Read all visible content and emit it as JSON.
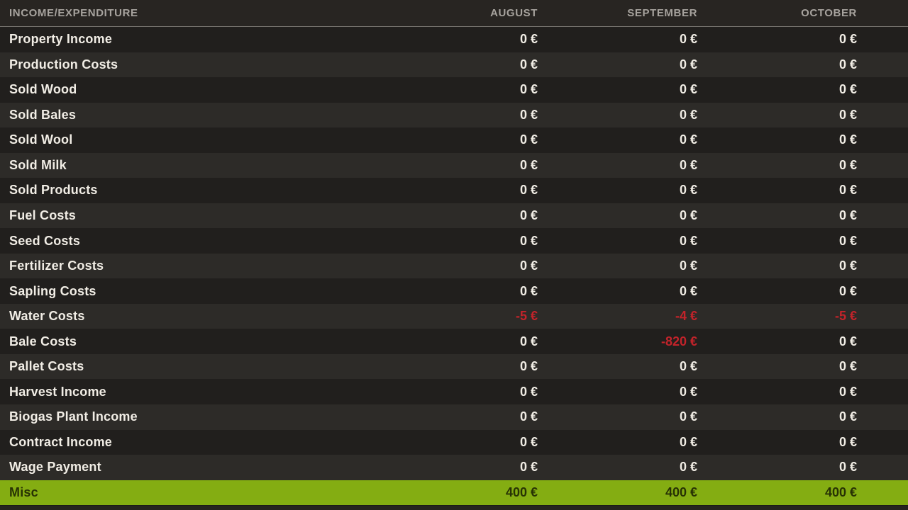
{
  "colors": {
    "highlight_green": "#84ad12",
    "negative_red": "#c2232a",
    "row_dark": "#211f1d",
    "row_light": "#2d2b28",
    "text_cream": "#f1ede5",
    "header_text": "#a7a39e"
  },
  "table": {
    "header": {
      "label": "INCOME/EXPENDITURE",
      "months": [
        "AUGUST",
        "SEPTEMBER",
        "OCTOBER"
      ]
    },
    "rows": [
      {
        "label": "Property Income",
        "values": [
          "0 €",
          "0 €",
          "0 €"
        ],
        "negative": [
          false,
          false,
          false
        ],
        "highlighted": false
      },
      {
        "label": "Production Costs",
        "values": [
          "0 €",
          "0 €",
          "0 €"
        ],
        "negative": [
          false,
          false,
          false
        ],
        "highlighted": false
      },
      {
        "label": "Sold Wood",
        "values": [
          "0 €",
          "0 €",
          "0 €"
        ],
        "negative": [
          false,
          false,
          false
        ],
        "highlighted": false
      },
      {
        "label": "Sold Bales",
        "values": [
          "0 €",
          "0 €",
          "0 €"
        ],
        "negative": [
          false,
          false,
          false
        ],
        "highlighted": false
      },
      {
        "label": "Sold Wool",
        "values": [
          "0 €",
          "0 €",
          "0 €"
        ],
        "negative": [
          false,
          false,
          false
        ],
        "highlighted": false
      },
      {
        "label": "Sold Milk",
        "values": [
          "0 €",
          "0 €",
          "0 €"
        ],
        "negative": [
          false,
          false,
          false
        ],
        "highlighted": false
      },
      {
        "label": "Sold Products",
        "values": [
          "0 €",
          "0 €",
          "0 €"
        ],
        "negative": [
          false,
          false,
          false
        ],
        "highlighted": false
      },
      {
        "label": "Fuel Costs",
        "values": [
          "0 €",
          "0 €",
          "0 €"
        ],
        "negative": [
          false,
          false,
          false
        ],
        "highlighted": false
      },
      {
        "label": "Seed Costs",
        "values": [
          "0 €",
          "0 €",
          "0 €"
        ],
        "negative": [
          false,
          false,
          false
        ],
        "highlighted": false
      },
      {
        "label": "Fertilizer Costs",
        "values": [
          "0 €",
          "0 €",
          "0 €"
        ],
        "negative": [
          false,
          false,
          false
        ],
        "highlighted": false
      },
      {
        "label": "Sapling Costs",
        "values": [
          "0 €",
          "0 €",
          "0 €"
        ],
        "negative": [
          false,
          false,
          false
        ],
        "highlighted": false
      },
      {
        "label": "Water Costs",
        "values": [
          "-5 €",
          "-4 €",
          "-5 €"
        ],
        "negative": [
          true,
          true,
          true
        ],
        "highlighted": false
      },
      {
        "label": "Bale Costs",
        "values": [
          "0 €",
          "-820 €",
          "0 €"
        ],
        "negative": [
          false,
          true,
          false
        ],
        "highlighted": false
      },
      {
        "label": "Pallet Costs",
        "values": [
          "0 €",
          "0 €",
          "0 €"
        ],
        "negative": [
          false,
          false,
          false
        ],
        "highlighted": false
      },
      {
        "label": "Harvest Income",
        "values": [
          "0 €",
          "0 €",
          "0 €"
        ],
        "negative": [
          false,
          false,
          false
        ],
        "highlighted": false
      },
      {
        "label": "Biogas Plant Income",
        "values": [
          "0 €",
          "0 €",
          "0 €"
        ],
        "negative": [
          false,
          false,
          false
        ],
        "highlighted": false
      },
      {
        "label": "Contract Income",
        "values": [
          "0 €",
          "0 €",
          "0 €"
        ],
        "negative": [
          false,
          false,
          false
        ],
        "highlighted": false
      },
      {
        "label": "Wage Payment",
        "values": [
          "0 €",
          "0 €",
          "0 €"
        ],
        "negative": [
          false,
          false,
          false
        ],
        "highlighted": false
      },
      {
        "label": "Misc",
        "values": [
          "400 €",
          "400 €",
          "400 €"
        ],
        "negative": [
          false,
          false,
          false
        ],
        "highlighted": true
      }
    ]
  }
}
